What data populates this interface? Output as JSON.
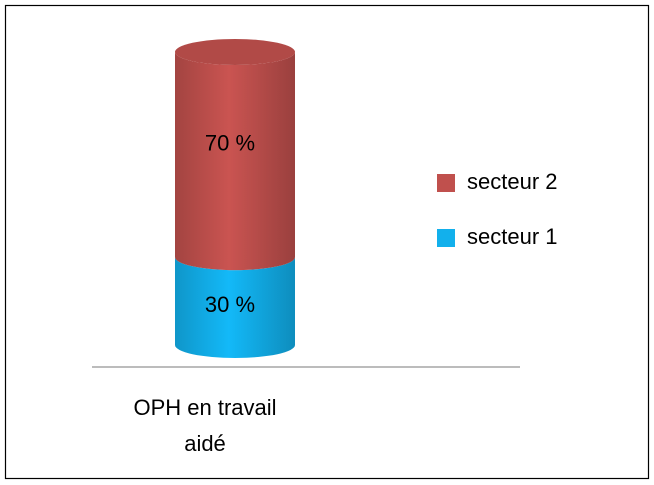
{
  "chart_data": {
    "type": "stacked_cylinder",
    "categories": [
      "OPH en travail aidé"
    ],
    "series": [
      {
        "name": "secteur 1",
        "color": "#12b0ec",
        "values": [
          30
        ],
        "value_labels": [
          "30 %"
        ]
      },
      {
        "name": "secteur 2",
        "color": "#c0504d",
        "values": [
          70
        ],
        "value_labels": [
          "70 %"
        ]
      }
    ],
    "legend": "right"
  }
}
